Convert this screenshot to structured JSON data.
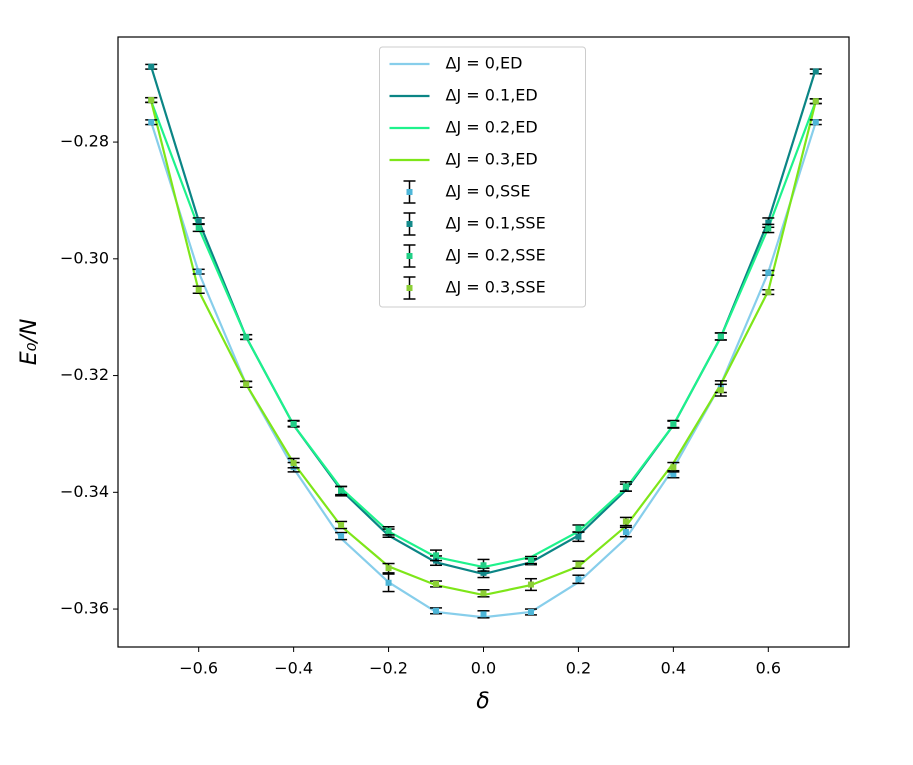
{
  "chart_data": {
    "type": "line",
    "xlabel": "δ",
    "ylabel": "E₀/N",
    "x": [
      -0.7,
      -0.6,
      -0.5,
      -0.4,
      -0.3,
      -0.2,
      -0.1,
      0.0,
      0.1,
      0.2,
      0.3,
      0.4,
      0.5,
      0.6,
      0.7
    ],
    "xlim": [
      -0.77,
      0.77
    ],
    "ylim": [
      -0.3665,
      -0.262
    ],
    "xticks": [
      {
        "value": -0.6,
        "label": "−0.6"
      },
      {
        "value": -0.4,
        "label": "−0.4"
      },
      {
        "value": -0.2,
        "label": "−0.2"
      },
      {
        "value": 0.0,
        "label": "0.0"
      },
      0.2,
      0.4,
      0.6
    ],
    "yticks": [
      {
        "value": -0.36,
        "label": "−0.36"
      },
      {
        "value": -0.34,
        "label": "−0.34"
      },
      {
        "value": -0.32,
        "label": "−0.32"
      },
      {
        "value": -0.3,
        "label": "−0.30"
      },
      {
        "value": -0.28,
        "label": "−0.28"
      }
    ],
    "legend": "upper center",
    "series": [
      {
        "name": "ΔJ = 0,ED",
        "color": "#87ceeb",
        "values": [
          -0.2766,
          -0.3023,
          -0.3215,
          -0.3359,
          -0.3479,
          -0.3554,
          -0.3605,
          -0.3614,
          -0.3605,
          -0.3554,
          -0.3479,
          -0.3359,
          -0.3215,
          -0.3023,
          -0.2766
        ]
      },
      {
        "name": "ΔJ = 0.1,ED",
        "color": "#0b8585",
        "values": [
          -0.2671,
          -0.2935,
          -0.3134,
          -0.3285,
          -0.3396,
          -0.3474,
          -0.352,
          -0.354,
          -0.352,
          -0.3474,
          -0.3396,
          -0.3285,
          -0.3134,
          -0.2935,
          -0.2675
        ]
      },
      {
        "name": "ΔJ = 0.2,ED",
        "color": "#1ef28c",
        "values": [
          -0.273,
          -0.2947,
          -0.3134,
          -0.3285,
          -0.3393,
          -0.3467,
          -0.3511,
          -0.3528,
          -0.3511,
          -0.3467,
          -0.3393,
          -0.3285,
          -0.3134,
          -0.2947,
          -0.273
        ]
      },
      {
        "name": "ΔJ = 0.3,ED",
        "color": "#7ee619",
        "values": [
          -0.273,
          -0.3055,
          -0.3215,
          -0.335,
          -0.3458,
          -0.3527,
          -0.3559,
          -0.3576,
          -0.3559,
          -0.3527,
          -0.3458,
          -0.335,
          -0.3215,
          -0.3055,
          -0.273
        ]
      },
      {
        "name": "ΔJ = 0,SSE",
        "color": "#4db6d8",
        "values": [
          -0.2766,
          -0.3022,
          -0.3215,
          -0.3357,
          -0.3475,
          -0.3555,
          -0.3603,
          -0.3609,
          -0.3605,
          -0.3549,
          -0.3468,
          -0.3369,
          -0.3219,
          -0.3024,
          -0.2766
        ],
        "errors": [
          0.0004,
          0.0004,
          0.0005,
          0.0008,
          0.0006,
          0.0015,
          0.0005,
          0.0006,
          0.0005,
          0.0007,
          0.0008,
          0.0006,
          0.001,
          0.0004,
          0.0004
        ]
      },
      {
        "name": "ΔJ = 0.1,SSE",
        "color": "#138a8a",
        "values": [
          -0.2671,
          -0.2935,
          -0.3134,
          -0.3282,
          -0.3398,
          -0.347,
          -0.3517,
          -0.3538,
          -0.3519,
          -0.3476,
          -0.3392,
          -0.3284,
          -0.3133,
          -0.2938,
          -0.2679
        ],
        "errors": [
          0.0004,
          0.0005,
          0.0004,
          0.0005,
          0.0008,
          0.0007,
          0.0008,
          0.0008,
          0.0005,
          0.0008,
          0.0006,
          0.0006,
          0.0006,
          0.0008,
          0.0004
        ]
      },
      {
        "name": "ΔJ = 0.2,SSE",
        "color": "#21cf86",
        "values": [
          -0.2728,
          -0.2947,
          -0.3134,
          -0.3283,
          -0.3397,
          -0.3466,
          -0.3508,
          -0.3525,
          -0.3516,
          -0.3462,
          -0.339,
          -0.3283,
          -0.3133,
          -0.2948,
          -0.273
        ],
        "errors": [
          0.0004,
          0.0006,
          0.0004,
          0.0005,
          0.0007,
          0.0007,
          0.0009,
          0.001,
          0.0006,
          0.0006,
          0.0008,
          0.0006,
          0.0006,
          0.0007,
          0.0004
        ]
      },
      {
        "name": "ΔJ = 0.3,SSE",
        "color": "#8ccf36",
        "values": [
          -0.2728,
          -0.3053,
          -0.3215,
          -0.335,
          -0.3456,
          -0.353,
          -0.3557,
          -0.3573,
          -0.3558,
          -0.3524,
          -0.345,
          -0.3357,
          -0.3225,
          -0.3057,
          -0.273
        ],
        "errors": [
          0.0004,
          0.0006,
          0.0005,
          0.0008,
          0.0006,
          0.0008,
          0.0005,
          0.0006,
          0.001,
          0.0006,
          0.0007,
          0.0008,
          0.001,
          0.0004,
          0.0004
        ]
      }
    ]
  }
}
